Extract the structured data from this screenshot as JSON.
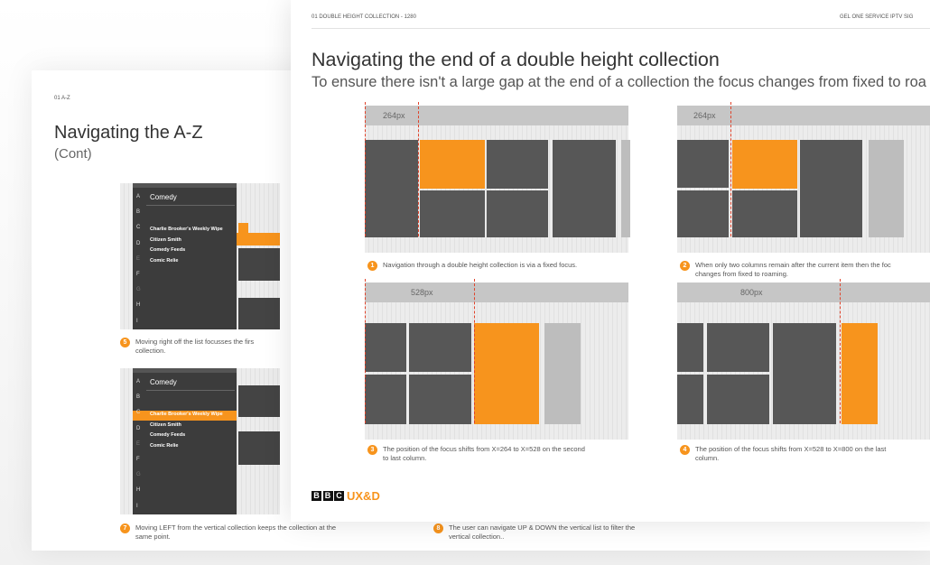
{
  "back_page": {
    "section": "01 A-Z",
    "title": "Navigating the A-Z",
    "subtitle": "(Cont)",
    "screens": [
      {
        "header": "Comedy",
        "letters": [
          "A",
          "B",
          "C",
          "D",
          "E",
          "F",
          "G",
          "H",
          "I"
        ],
        "items": [
          "Charlie Brooker's Weekly Wipe",
          "Citizen Smith",
          "Comedy Feeds",
          "Comic Relie"
        ]
      },
      {
        "header": "Comedy",
        "letters": [
          "A",
          "B",
          "C",
          "D",
          "E",
          "F",
          "G",
          "H",
          "I"
        ],
        "items": [
          "Charlie Brooker's Weekly Wipe",
          "Citizen Smith",
          "Comedy Feeds",
          "Comic Relie"
        ]
      }
    ],
    "captions": [
      {
        "number": 5,
        "lines": [
          "Moving right off the list focusses the firs",
          "collection."
        ]
      },
      {
        "number": 7,
        "lines": [
          "Moving LEFT from the vertical collection keeps the collection at the",
          "same point."
        ]
      },
      {
        "number": 8,
        "lines": [
          "The user can navigate UP & DOWN the vertical list to filter the",
          "vertical collection.."
        ]
      }
    ]
  },
  "front_page": {
    "section": "01 DOUBLE HEIGHT COLLECTION - 1280",
    "brand": "GEL ONE SERVICE IPTV SIG",
    "title": "Navigating the end of a double height collection",
    "subtitle": "To ensure there isn't a large gap at the end of a collection the focus changes from fixed to roa",
    "diagrams": [
      {
        "label": "264px",
        "number": 1,
        "lines": [
          "Navigation through a double height collection is via a fixed focus."
        ]
      },
      {
        "label": "264px",
        "number": 2,
        "lines": [
          "When only two columns remain after the current item then the foc",
          "changes from fixed to roaming."
        ]
      },
      {
        "label": "528px",
        "number": 3,
        "lines": [
          "The position of the focus shifts from X=264 to X=528 on the second",
          "to last column."
        ]
      },
      {
        "label": "800px",
        "number": 4,
        "lines": [
          "The position of the focus shifts from X=528 to X=800 on the last",
          "column."
        ]
      }
    ],
    "logo": {
      "letters": [
        "B",
        "B",
        "C"
      ],
      "text": "UX&D"
    }
  }
}
